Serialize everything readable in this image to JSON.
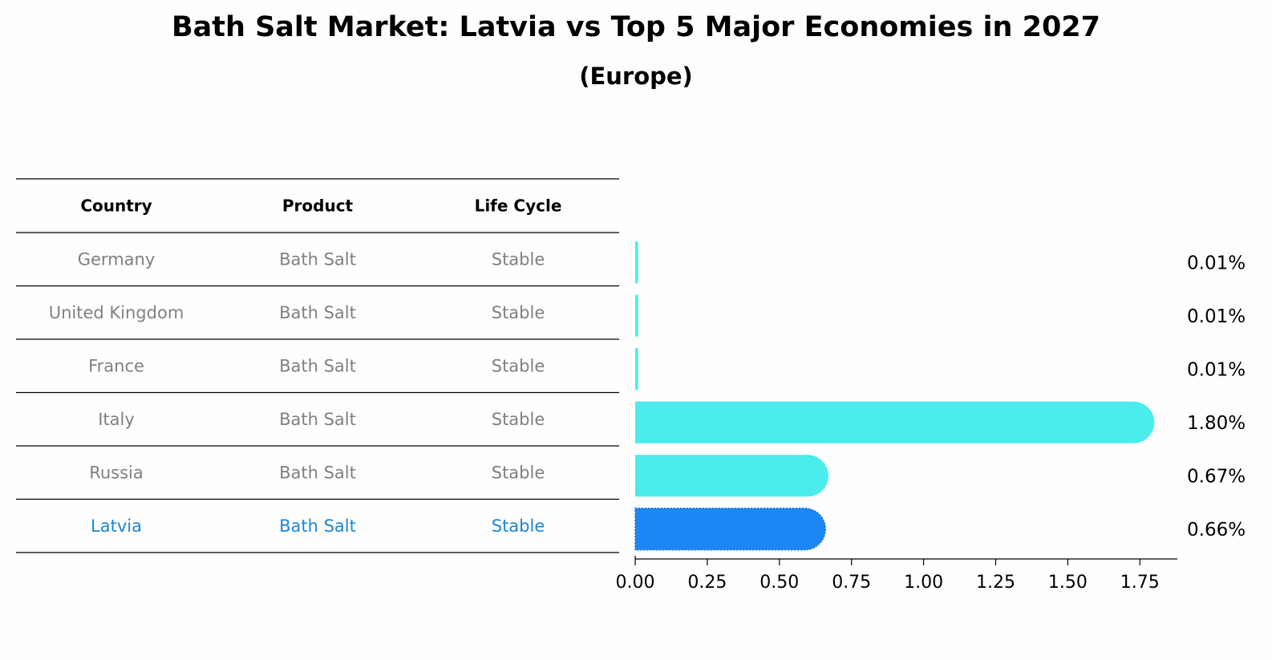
{
  "title": "Bath Salt Market: Latvia vs Top 5 Major Economies in 2027",
  "subtitle": "(Europe)",
  "table": {
    "headers": [
      "Country",
      "Product",
      "Life Cycle"
    ],
    "rows": [
      [
        "Germany",
        "Bath Salt",
        "Stable"
      ],
      [
        "United Kingdom",
        "Bath Salt",
        "Stable"
      ],
      [
        "France",
        "Bath Salt",
        "Stable"
      ],
      [
        "Italy",
        "Bath Salt",
        "Stable"
      ],
      [
        "Russia",
        "Bath Salt",
        "Stable"
      ],
      [
        "Latvia",
        "Bath Salt",
        "Stable"
      ]
    ],
    "highlight_row": 5
  },
  "colors": {
    "bar": "#4aecec",
    "highlight": "#1a87f5",
    "muted_text": "#808080",
    "highlight_text": "#1a87d8"
  },
  "chart_data": {
    "type": "bar",
    "orientation": "horizontal",
    "title": "Bath Salt Market: Latvia vs Top 5 Major Economies in 2027",
    "subtitle": "(Europe)",
    "categories": [
      "Germany",
      "United Kingdom",
      "France",
      "Italy",
      "Russia",
      "Latvia"
    ],
    "values": [
      0.01,
      0.01,
      0.01,
      1.8,
      0.67,
      0.66
    ],
    "value_labels": [
      "0.01%",
      "0.01%",
      "0.01%",
      "1.80%",
      "0.67%",
      "0.66%"
    ],
    "xlim": [
      0,
      1.88
    ],
    "xticks": [
      "0.00",
      "0.25",
      "0.50",
      "0.75",
      "1.00",
      "1.25",
      "1.50",
      "1.75"
    ],
    "xtick_values": [
      0,
      0.25,
      0.5,
      0.75,
      1.0,
      1.25,
      1.5,
      1.75
    ],
    "grid": false
  }
}
